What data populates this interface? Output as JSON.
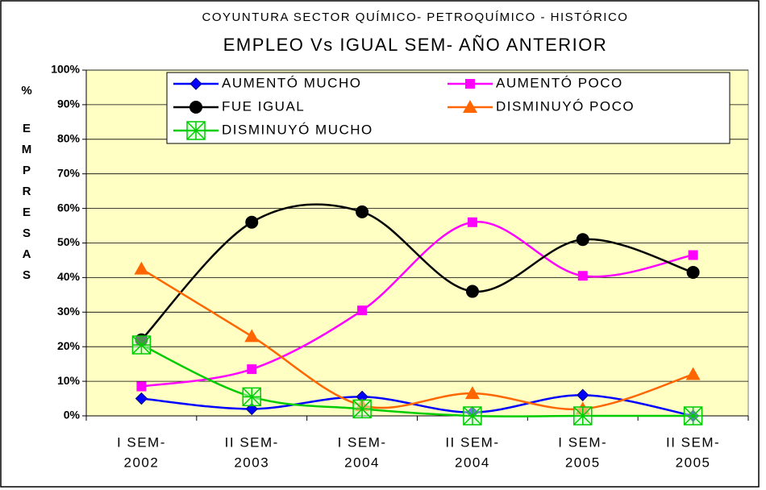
{
  "chart_data": {
    "type": "line",
    "title": "COYUNTURA SECTOR QUÍMICO- PETROQUÍMICO - HISTÓRICO",
    "subtitle": "EMPLEO Vs IGUAL SEM- AÑO ANTERIOR",
    "ylabel_symbol": "%",
    "ylabel": "EMPRESAS",
    "categories": [
      [
        "I SEM-",
        "2002"
      ],
      [
        "II SEM-",
        "2003"
      ],
      [
        "I SEM-",
        "2004"
      ],
      [
        "II SEM-",
        "2004"
      ],
      [
        "I SEM-",
        "2005"
      ],
      [
        "II SEM-",
        "2005"
      ]
    ],
    "series": [
      {
        "name": "AUMENTÓ MUCHO",
        "color": "#0000ff",
        "marker": "diamond",
        "values": [
          5,
          2,
          5.5,
          1,
          6,
          0
        ]
      },
      {
        "name": "AUMENTÓ POCO",
        "color": "#ff00ff",
        "marker": "square",
        "values": [
          8.5,
          13.5,
          30.5,
          56,
          40.5,
          46.5
        ]
      },
      {
        "name": "FUE IGUAL",
        "color": "#000000",
        "marker": "circle",
        "values": [
          22,
          56,
          59,
          36,
          51,
          41.5
        ]
      },
      {
        "name": "DISMINUYÓ POCO",
        "color": "#ff6600",
        "marker": "triangle",
        "values": [
          42.5,
          23,
          3,
          6.5,
          2,
          12
        ]
      },
      {
        "name": "DISMINUYÓ MUCHO",
        "color": "#00cc00",
        "marker": "boxx",
        "values": [
          20.5,
          5.5,
          2,
          0,
          0,
          0
        ]
      }
    ],
    "ylim": [
      0,
      100
    ],
    "yticks": [
      {
        "value": 0,
        "label": "0%"
      },
      {
        "value": 10,
        "label": "10%"
      },
      {
        "value": 20,
        "label": "20%"
      },
      {
        "value": 30,
        "label": "30%"
      },
      {
        "value": 40,
        "label": "40%"
      },
      {
        "value": 50,
        "label": "50%"
      },
      {
        "value": 60,
        "label": "60%"
      },
      {
        "value": 70,
        "label": "70%"
      },
      {
        "value": 80,
        "label": "80%"
      },
      {
        "value": 90,
        "label": "90%"
      },
      {
        "value": 100,
        "label": "100%"
      }
    ],
    "grid": true,
    "smooth": true,
    "plot_background": "#ffffc4",
    "legend": "top"
  }
}
